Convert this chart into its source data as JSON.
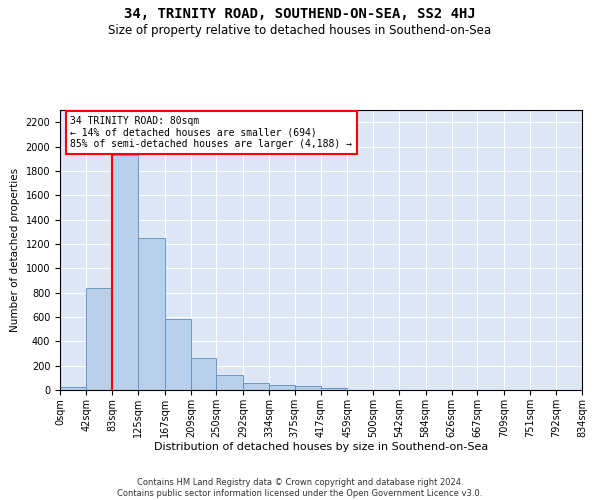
{
  "title": "34, TRINITY ROAD, SOUTHEND-ON-SEA, SS2 4HJ",
  "subtitle": "Size of property relative to detached houses in Southend-on-Sea",
  "xlabel": "Distribution of detached houses by size in Southend-on-Sea",
  "ylabel": "Number of detached properties",
  "bar_color": "#b8d0ea",
  "bar_edge_color": "#5b8ec4",
  "bg_color": "#dce6f5",
  "grid_color": "#ffffff",
  "annotation_box_text": "34 TRINITY ROAD: 80sqm\n← 14% of detached houses are smaller (694)\n85% of semi-detached houses are larger (4,188) →",
  "redline_x": 83,
  "bin_labels": [
    "0sqm",
    "42sqm",
    "83sqm",
    "125sqm",
    "167sqm",
    "209sqm",
    "250sqm",
    "292sqm",
    "334sqm",
    "375sqm",
    "417sqm",
    "459sqm",
    "500sqm",
    "542sqm",
    "584sqm",
    "626sqm",
    "667sqm",
    "709sqm",
    "751sqm",
    "792sqm",
    "834sqm"
  ],
  "bin_edges": [
    0,
    42,
    83,
    125,
    167,
    209,
    250,
    292,
    334,
    375,
    417,
    459,
    500,
    542,
    584,
    626,
    667,
    709,
    751,
    792,
    834
  ],
  "bar_heights": [
    25,
    835,
    1930,
    1250,
    580,
    260,
    120,
    55,
    45,
    30,
    20,
    0,
    0,
    0,
    0,
    0,
    0,
    0,
    0,
    0
  ],
  "ylim": [
    0,
    2300
  ],
  "yticks": [
    0,
    200,
    400,
    600,
    800,
    1000,
    1200,
    1400,
    1600,
    1800,
    2000,
    2200
  ],
  "footnote": "Contains HM Land Registry data © Crown copyright and database right 2024.\nContains public sector information licensed under the Open Government Licence v3.0.",
  "title_fontsize": 10,
  "subtitle_fontsize": 8.5,
  "xlabel_fontsize": 8,
  "ylabel_fontsize": 7.5,
  "tick_fontsize": 7,
  "footnote_fontsize": 6,
  "annot_fontsize": 7
}
